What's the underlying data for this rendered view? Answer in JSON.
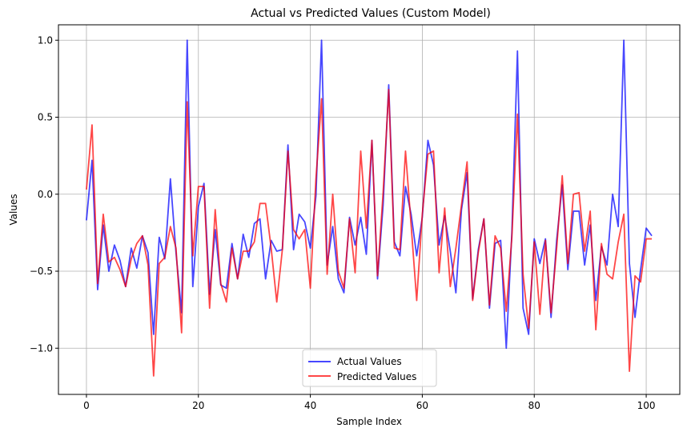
{
  "chart_data": {
    "type": "line",
    "title": "Actual vs Predicted Values (Custom Model)",
    "xlabel": "Sample Index",
    "ylabel": "Values",
    "xlim": [
      -5,
      106
    ],
    "ylim": [
      -1.3,
      1.1
    ],
    "xticks": [
      0,
      20,
      40,
      60,
      80,
      100
    ],
    "yticks": [
      -1.0,
      -0.5,
      0.0,
      0.5,
      1.0
    ],
    "xtick_labels": [
      "0",
      "20",
      "40",
      "60",
      "80",
      "100"
    ],
    "ytick_labels": [
      "−1.0",
      "−0.5",
      "0.0",
      "0.5",
      "1.0"
    ],
    "grid": true,
    "legend_position": "bottom-center",
    "series": [
      {
        "name": "Actual Values",
        "color": "#0000ff",
        "values": [
          -0.17,
          0.22,
          -0.62,
          -0.2,
          -0.5,
          -0.33,
          -0.43,
          -0.6,
          -0.35,
          -0.48,
          -0.27,
          -0.38,
          -0.91,
          -0.28,
          -0.42,
          0.1,
          -0.38,
          -0.77,
          1.0,
          -0.6,
          -0.08,
          0.07,
          -0.65,
          -0.23,
          -0.59,
          -0.61,
          -0.32,
          -0.55,
          -0.26,
          -0.41,
          -0.19,
          -0.16,
          -0.55,
          -0.3,
          -0.37,
          -0.36,
          0.32,
          -0.36,
          -0.13,
          -0.18,
          -0.35,
          -0.01,
          1.0,
          -0.46,
          -0.21,
          -0.55,
          -0.64,
          -0.15,
          -0.33,
          -0.15,
          -0.39,
          0.35,
          -0.55,
          -0.07,
          0.71,
          -0.31,
          -0.4,
          0.05,
          -0.13,
          -0.4,
          -0.15,
          0.35,
          0.19,
          -0.33,
          -0.14,
          -0.37,
          -0.64,
          -0.1,
          0.14,
          -0.68,
          -0.36,
          -0.16,
          -0.74,
          -0.32,
          -0.3,
          -1.0,
          -0.25,
          0.93,
          -0.74,
          -0.91,
          -0.29,
          -0.45,
          -0.29,
          -0.8,
          -0.3,
          0.06,
          -0.49,
          -0.11,
          -0.11,
          -0.46,
          -0.2,
          -0.69,
          -0.34,
          -0.46,
          0.0,
          -0.21,
          1.0,
          -0.45,
          -0.8,
          -0.49,
          -0.22,
          -0.27
        ]
      },
      {
        "name": "Predicted Values",
        "color": "#ff0000",
        "values": [
          0.03,
          0.45,
          -0.58,
          -0.13,
          -0.44,
          -0.41,
          -0.49,
          -0.6,
          -0.42,
          -0.32,
          -0.27,
          -0.46,
          -1.18,
          -0.45,
          -0.41,
          -0.21,
          -0.35,
          -0.9,
          0.6,
          -0.4,
          0.05,
          0.05,
          -0.74,
          -0.1,
          -0.58,
          -0.7,
          -0.35,
          -0.55,
          -0.37,
          -0.37,
          -0.31,
          -0.06,
          -0.06,
          -0.35,
          -0.7,
          -0.36,
          0.28,
          -0.23,
          -0.29,
          -0.23,
          -0.61,
          0.1,
          0.62,
          -0.52,
          0.0,
          -0.5,
          -0.61,
          -0.16,
          -0.51,
          0.28,
          -0.22,
          0.35,
          -0.53,
          0.01,
          0.68,
          -0.35,
          -0.36,
          0.28,
          -0.2,
          -0.69,
          -0.13,
          0.26,
          0.28,
          -0.51,
          -0.09,
          -0.6,
          -0.35,
          -0.07,
          0.21,
          -0.69,
          -0.38,
          -0.16,
          -0.72,
          -0.27,
          -0.35,
          -0.76,
          -0.28,
          0.52,
          -0.52,
          -0.87,
          -0.31,
          -0.78,
          -0.3,
          -0.77,
          -0.35,
          0.12,
          -0.45,
          0.0,
          0.01,
          -0.37,
          -0.11,
          -0.88,
          -0.32,
          -0.52,
          -0.55,
          -0.31,
          -0.13,
          -1.15,
          -0.53,
          -0.57,
          -0.29,
          -0.29
        ]
      }
    ]
  }
}
